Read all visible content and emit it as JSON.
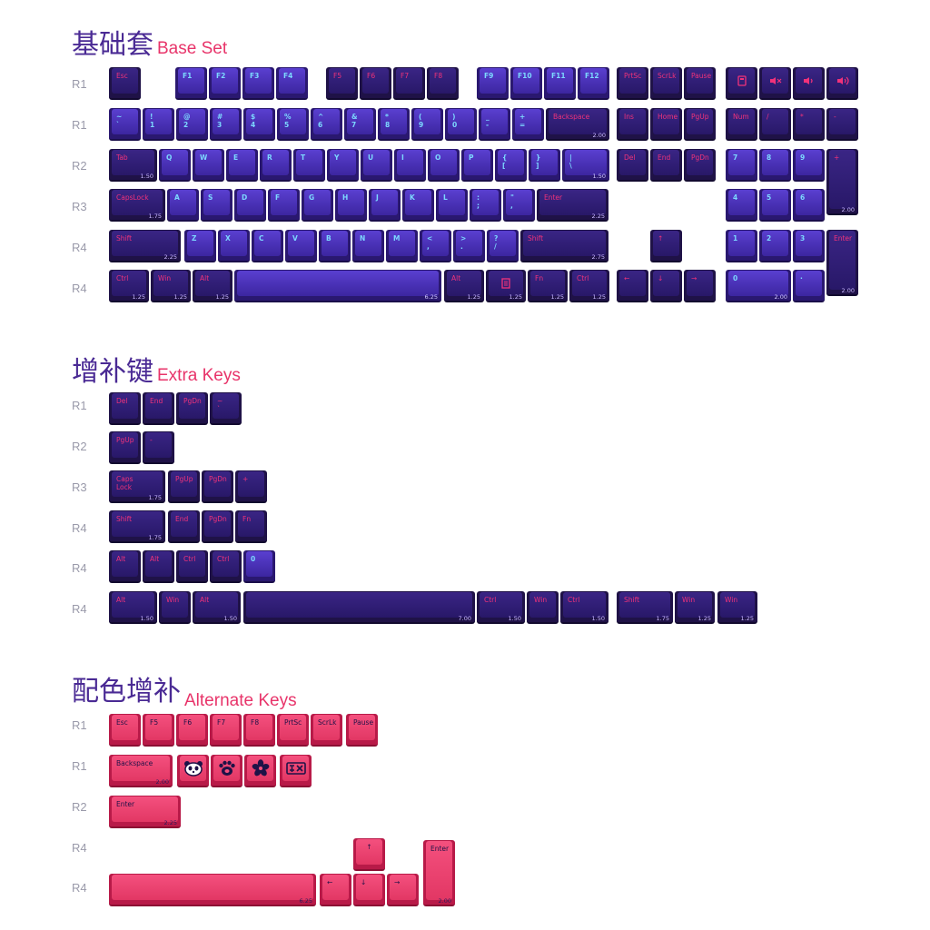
{
  "sections": {
    "base": {
      "zh": "基础套",
      "en": "Base Set"
    },
    "extra": {
      "zh": "增补键",
      "en": "Extra Keys"
    },
    "alternate": {
      "zh": "配色增补",
      "en": "Alternate Keys"
    }
  },
  "colors": {
    "dark_key": "#281868",
    "blue_key": "#4a33b8",
    "pink_key": "#e8386a",
    "legend_pink": "#f0327a",
    "legend_cyan": "#7cd8ff",
    "title_purple": "#4a2a94",
    "title_pink": "#e8346a"
  },
  "row_labels": [
    {
      "text": "R1"
    },
    {
      "text": "R1"
    },
    {
      "text": "R2"
    },
    {
      "text": "R3"
    },
    {
      "text": "R4"
    },
    {
      "text": "R4"
    },
    {
      "text": "R1"
    },
    {
      "text": "R2"
    },
    {
      "text": "R3"
    },
    {
      "text": "R4"
    },
    {
      "text": "R4"
    },
    {
      "text": "R4"
    },
    {
      "text": "R1"
    },
    {
      "text": "R1"
    },
    {
      "text": "R2"
    },
    {
      "text": "R4"
    },
    {
      "text": "R4"
    }
  ],
  "keys": [
    {
      "legend": "Esc",
      "color": "dark"
    },
    {
      "legend": "F1",
      "color": "blue"
    },
    {
      "legend": "F2",
      "color": "blue"
    },
    {
      "legend": "F3",
      "color": "blue"
    },
    {
      "legend": "F4",
      "color": "blue"
    },
    {
      "legend": "F5",
      "color": "dark"
    },
    {
      "legend": "F6",
      "color": "dark"
    },
    {
      "legend": "F7",
      "color": "dark"
    },
    {
      "legend": "F8",
      "color": "dark"
    },
    {
      "legend": "F9",
      "color": "blue"
    },
    {
      "legend": "F10",
      "color": "blue"
    },
    {
      "legend": "F11",
      "color": "blue"
    },
    {
      "legend": "F12",
      "color": "blue"
    },
    {
      "legend": "PrtSc",
      "color": "dark"
    },
    {
      "legend": "ScrLk",
      "color": "dark"
    },
    {
      "legend": "Pause",
      "color": "dark"
    },
    {
      "legend": "",
      "icon": "calculator-icon",
      "color": "dark"
    },
    {
      "legend": "",
      "icon": "mute-icon",
      "color": "dark"
    },
    {
      "legend": "",
      "icon": "volume-down-icon",
      "color": "dark"
    },
    {
      "legend": "",
      "icon": "volume-up-icon",
      "color": "dark"
    },
    {
      "legend": "~\n`",
      "color": "blue"
    },
    {
      "legend": "!\n1",
      "color": "blue"
    },
    {
      "legend": "@\n2",
      "color": "blue"
    },
    {
      "legend": "#\n3",
      "color": "blue"
    },
    {
      "legend": "$\n4",
      "color": "blue"
    },
    {
      "legend": "%\n5",
      "color": "blue"
    },
    {
      "legend": "^\n6",
      "color": "blue"
    },
    {
      "legend": "&\n7",
      "color": "blue"
    },
    {
      "legend": "*\n8",
      "color": "blue"
    },
    {
      "legend": "(\n9",
      "color": "blue"
    },
    {
      "legend": ")\n0",
      "color": "blue"
    },
    {
      "legend": "_\n-",
      "color": "blue"
    },
    {
      "legend": "+\n=",
      "color": "blue"
    },
    {
      "legend": "Backspace",
      "size": "2.00",
      "color": "dark"
    },
    {
      "legend": "Ins",
      "color": "dark"
    },
    {
      "legend": "Home",
      "color": "dark"
    },
    {
      "legend": "PgUp",
      "color": "dark"
    },
    {
      "legend": "Num",
      "color": "dark"
    },
    {
      "legend": "/",
      "color": "dark"
    },
    {
      "legend": "*",
      "color": "dark"
    },
    {
      "legend": "-",
      "color": "dark"
    },
    {
      "legend": "Tab",
      "size": "1.50",
      "color": "dark"
    },
    {
      "legend": "Q",
      "color": "blue"
    },
    {
      "legend": "W",
      "color": "blue"
    },
    {
      "legend": "E",
      "color": "blue"
    },
    {
      "legend": "R",
      "color": "blue"
    },
    {
      "legend": "T",
      "color": "blue"
    },
    {
      "legend": "Y",
      "color": "blue"
    },
    {
      "legend": "U",
      "color": "blue"
    },
    {
      "legend": "I",
      "color": "blue"
    },
    {
      "legend": "O",
      "color": "blue"
    },
    {
      "legend": "P",
      "color": "blue"
    },
    {
      "legend": "{\n[",
      "color": "blue"
    },
    {
      "legend": "}\n]",
      "color": "blue"
    },
    {
      "legend": "|\n\\",
      "size": "1.50",
      "color": "blue"
    },
    {
      "legend": "Del",
      "color": "dark"
    },
    {
      "legend": "End",
      "color": "dark"
    },
    {
      "legend": "PgDn",
      "color": "dark"
    },
    {
      "legend": "7",
      "color": "blue"
    },
    {
      "legend": "8",
      "color": "blue"
    },
    {
      "legend": "9",
      "color": "blue"
    },
    {
      "legend": "+",
      "size": "2.00",
      "color": "dark"
    },
    {
      "legend": "CapsLock",
      "size": "1.75",
      "color": "dark"
    },
    {
      "legend": "A",
      "color": "blue"
    },
    {
      "legend": "S",
      "color": "blue"
    },
    {
      "legend": "D",
      "color": "blue"
    },
    {
      "legend": "F",
      "color": "blue"
    },
    {
      "legend": "G",
      "color": "blue"
    },
    {
      "legend": "H",
      "color": "blue"
    },
    {
      "legend": "J",
      "color": "blue"
    },
    {
      "legend": "K",
      "color": "blue"
    },
    {
      "legend": "L",
      "color": "blue"
    },
    {
      "legend": ":\n;",
      "color": "blue"
    },
    {
      "legend": "\"\n,",
      "color": "blue"
    },
    {
      "legend": "Enter",
      "size": "2.25",
      "color": "dark"
    },
    {
      "legend": "4",
      "color": "blue"
    },
    {
      "legend": "5",
      "color": "blue"
    },
    {
      "legend": "6",
      "color": "blue"
    },
    {
      "legend": "Shift",
      "size": "2.25",
      "color": "dark"
    },
    {
      "legend": "Z",
      "color": "blue"
    },
    {
      "legend": "X",
      "color": "blue"
    },
    {
      "legend": "C",
      "color": "blue"
    },
    {
      "legend": "V",
      "color": "blue"
    },
    {
      "legend": "B",
      "color": "blue"
    },
    {
      "legend": "N",
      "color": "blue"
    },
    {
      "legend": "M",
      "color": "blue"
    },
    {
      "legend": "<\n,",
      "color": "blue"
    },
    {
      "legend": ">\n.",
      "color": "blue"
    },
    {
      "legend": "?\n/",
      "color": "blue"
    },
    {
      "legend": "Shift",
      "size": "2.75",
      "color": "dark"
    },
    {
      "legend": "↑",
      "color": "dark"
    },
    {
      "legend": "1",
      "color": "blue"
    },
    {
      "legend": "2",
      "color": "blue"
    },
    {
      "legend": "3",
      "color": "blue"
    },
    {
      "legend": "Enter",
      "size": "2.00",
      "color": "dark"
    },
    {
      "legend": "Ctrl",
      "size": "1.25",
      "color": "dark"
    },
    {
      "legend": "Win",
      "size": "1.25",
      "color": "dark"
    },
    {
      "legend": "Alt",
      "size": "1.25",
      "color": "dark"
    },
    {
      "legend": "",
      "size": "6.25",
      "color": "blue"
    },
    {
      "legend": "Alt",
      "size": "1.25",
      "color": "dark"
    },
    {
      "legend": "",
      "icon": "menu-icon",
      "size": "1.25",
      "color": "dark"
    },
    {
      "legend": "Fn",
      "size": "1.25",
      "color": "dark"
    },
    {
      "legend": "Ctrl",
      "size": "1.25",
      "color": "dark"
    },
    {
      "legend": "←",
      "color": "dark"
    },
    {
      "legend": "↓",
      "color": "dark"
    },
    {
      "legend": "→",
      "color": "dark"
    },
    {
      "legend": "0",
      "size": "2.00",
      "color": "blue"
    },
    {
      "legend": "·",
      "color": "blue"
    },
    {
      "legend": "Del",
      "color": "dark"
    },
    {
      "legend": "End",
      "color": "dark"
    },
    {
      "legend": "PgDn",
      "color": "dark"
    },
    {
      "legend": "~\n`",
      "color": "dark"
    },
    {
      "legend": "PgUp",
      "color": "dark"
    },
    {
      "legend": "-",
      "color": "dark"
    },
    {
      "legend": "Caps\nLock",
      "size": "1.75",
      "color": "dark"
    },
    {
      "legend": "PgUp",
      "color": "dark"
    },
    {
      "legend": "PgDn",
      "color": "dark"
    },
    {
      "legend": "+",
      "color": "dark"
    },
    {
      "legend": "Shift",
      "size": "1.75",
      "color": "dark"
    },
    {
      "legend": "End",
      "color": "dark"
    },
    {
      "legend": "PgDn",
      "color": "dark"
    },
    {
      "legend": "Fn",
      "color": "dark"
    },
    {
      "legend": "Alt",
      "color": "dark"
    },
    {
      "legend": "Alt",
      "color": "dark"
    },
    {
      "legend": "Ctrl",
      "color": "dark"
    },
    {
      "legend": "Ctrl",
      "color": "dark"
    },
    {
      "legend": "0",
      "color": "blue"
    },
    {
      "legend": "Alt",
      "size": "1.50",
      "color": "dark"
    },
    {
      "legend": "Win",
      "color": "dark"
    },
    {
      "legend": "Alt",
      "size": "1.50",
      "color": "dark"
    },
    {
      "legend": "",
      "size": "7.00",
      "color": "dark"
    },
    {
      "legend": "Ctrl",
      "size": "1.50",
      "color": "dark"
    },
    {
      "legend": "Win",
      "color": "dark"
    },
    {
      "legend": "Ctrl",
      "size": "1.50",
      "color": "dark"
    },
    {
      "legend": "Shift",
      "size": "1.75",
      "color": "dark"
    },
    {
      "legend": "Win",
      "size": "1.25",
      "color": "dark"
    },
    {
      "legend": "Win",
      "size": "1.25",
      "color": "dark"
    },
    {
      "legend": "Esc",
      "color": "pink"
    },
    {
      "legend": "F5",
      "color": "pink"
    },
    {
      "legend": "F6",
      "color": "pink"
    },
    {
      "legend": "F7",
      "color": "pink"
    },
    {
      "legend": "F8",
      "color": "pink"
    },
    {
      "legend": "PrtSc",
      "color": "pink"
    },
    {
      "legend": "ScrLk",
      "color": "pink"
    },
    {
      "legend": "Pause",
      "color": "pink"
    },
    {
      "legend": "Backspace",
      "size": "2.00",
      "color": "pink"
    },
    {
      "legend": "",
      "icon": "panda-icon",
      "color": "pink"
    },
    {
      "legend": "",
      "icon": "paw-icon",
      "color": "pink"
    },
    {
      "legend": "",
      "icon": "sakura-icon",
      "color": "pink"
    },
    {
      "legend": "",
      "icon": "mahjong-icon",
      "color": "pink"
    },
    {
      "legend": "Enter",
      "size": "2.25",
      "color": "pink"
    },
    {
      "legend": "↑",
      "color": "pink"
    },
    {
      "legend": "",
      "size": "6.25",
      "color": "pink"
    },
    {
      "legend": "←",
      "color": "pink"
    },
    {
      "legend": "↓",
      "color": "pink"
    },
    {
      "legend": "→",
      "color": "pink"
    },
    {
      "legend": "Enter",
      "size": "2.00",
      "color": "pink"
    }
  ]
}
